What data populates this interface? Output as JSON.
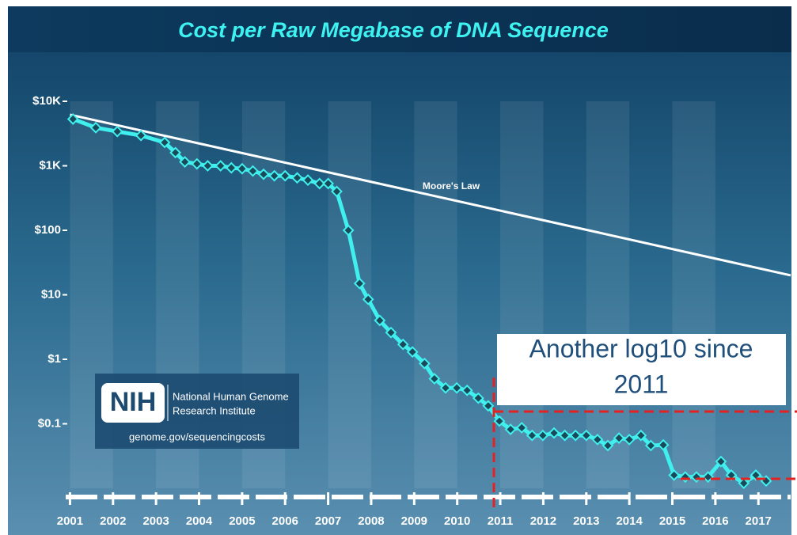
{
  "chart_data": {
    "type": "line",
    "title": "Cost per Raw Megabase of DNA Sequence",
    "log_y": true,
    "xlim": [
      2000.9,
      2017.75
    ],
    "xticks": [
      2001,
      2002,
      2003,
      2004,
      2005,
      2006,
      2007,
      2008,
      2009,
      2010,
      2011,
      2012,
      2013,
      2014,
      2015,
      2016,
      2017
    ],
    "ylim": [
      0.01,
      10000
    ],
    "yticks": [
      {
        "value": 10000,
        "label": "$10K"
      },
      {
        "value": 1000,
        "label": "$1K"
      },
      {
        "value": 100,
        "label": "$100"
      },
      {
        "value": 10,
        "label": "$10"
      },
      {
        "value": 1,
        "label": "$1"
      },
      {
        "value": 0.1,
        "label": "$0.1"
      }
    ],
    "series": [
      {
        "name": "Moore's Law",
        "color": "#ffffff",
        "x": [
          2001,
          2017.75
        ],
        "values": [
          6200,
          20
        ]
      },
      {
        "color": "#40f0ee",
        "markers": true,
        "x": [
          2001.07,
          2001.6,
          2002.1,
          2002.65,
          2003.2,
          2003.45,
          2003.67,
          2003.95,
          2004.2,
          2004.5,
          2004.75,
          2005.0,
          2005.25,
          2005.5,
          2005.75,
          2006.0,
          2006.28,
          2006.53,
          2006.8,
          2007.0,
          2007.2,
          2007.47,
          2007.73,
          2007.93,
          2008.2,
          2008.46,
          2008.74,
          2008.96,
          2009.24,
          2009.47,
          2009.73,
          2009.99,
          2010.23,
          2010.49,
          2010.72,
          2010.98,
          2011.24,
          2011.5,
          2011.74,
          2011.99,
          2012.25,
          2012.5,
          2012.75,
          2013.0,
          2013.26,
          2013.5,
          2013.76,
          2014.0,
          2014.27,
          2014.5,
          2014.79,
          2015.04,
          2015.3,
          2015.56,
          2015.83,
          2016.13,
          2016.37,
          2016.66,
          2016.94,
          2017.18
        ],
        "values": [
          5300,
          3900,
          3400,
          2950,
          2300,
          1600,
          1150,
          1070,
          1000,
          1000,
          930,
          900,
          830,
          740,
          700,
          700,
          650,
          600,
          530,
          530,
          400,
          100,
          15,
          8.5,
          4.0,
          2.6,
          1.7,
          1.3,
          0.86,
          0.5,
          0.36,
          0.36,
          0.33,
          0.25,
          0.19,
          0.11,
          0.082,
          0.087,
          0.066,
          0.066,
          0.072,
          0.066,
          0.066,
          0.066,
          0.057,
          0.046,
          0.06,
          0.057,
          0.066,
          0.046,
          0.047,
          0.016,
          0.015,
          0.015,
          0.015,
          0.026,
          0.016,
          0.012,
          0.016,
          0.013
        ]
      }
    ],
    "annotation": [
      "Another log10 since",
      "2011"
    ],
    "logo": {
      "mark": "NIH",
      "lines": [
        "National Human Genome",
        "Research Institute"
      ],
      "url": "genome.gov/sequencingcosts"
    }
  }
}
